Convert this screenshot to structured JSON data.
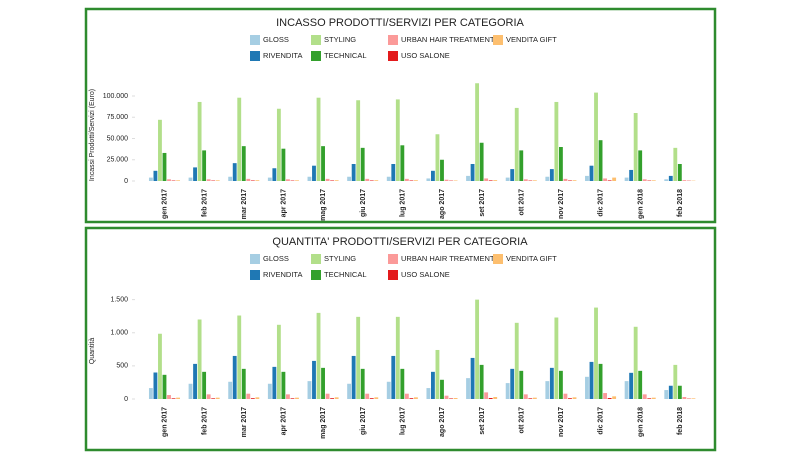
{
  "chart_data": [
    {
      "type": "bar",
      "title": "INCASSO PRODOTTI/SERVIZI PER CATEGORIA",
      "y_label": "Incassi Prodotti/Servizi (Euro)",
      "categories": [
        "gen 2017",
        "feb 2017",
        "mar 2017",
        "apr 2017",
        "mag 2017",
        "giu 2017",
        "lug 2017",
        "ago 2017",
        "set 2017",
        "ott 2017",
        "nov 2017",
        "dic 2017",
        "gen 2018",
        "feb 2018"
      ],
      "series": [
        {
          "name": "GLOSS",
          "color": "#a6cee3",
          "values": [
            4000,
            4000,
            5000,
            4000,
            5000,
            5000,
            5000,
            3000,
            6000,
            4000,
            5000,
            6000,
            4000,
            2000
          ]
        },
        {
          "name": "RIVENDITA",
          "color": "#1f78b4",
          "values": [
            12000,
            16000,
            21000,
            15000,
            18000,
            20000,
            20000,
            12000,
            20000,
            14000,
            14000,
            18000,
            13000,
            6000
          ]
        },
        {
          "name": "STYLING",
          "color": "#b2df8a",
          "values": [
            72000,
            93000,
            98000,
            85000,
            98000,
            95000,
            96000,
            55000,
            115000,
            86000,
            93000,
            104000,
            80000,
            39000
          ]
        },
        {
          "name": "TECHNICAL",
          "color": "#33a02c",
          "values": [
            33000,
            36000,
            41000,
            38000,
            41000,
            39000,
            42000,
            25000,
            45000,
            36000,
            40000,
            48000,
            36000,
            20000
          ]
        },
        {
          "name": "URBAN HAIR TREATMENTS",
          "color": "#fb9a99",
          "values": [
            2000,
            2000,
            2500,
            2000,
            2500,
            2500,
            2500,
            1500,
            3000,
            2000,
            2500,
            3000,
            2000,
            1000
          ]
        },
        {
          "name": "USO SALONE",
          "color": "#e31a1c",
          "values": [
            500,
            500,
            600,
            500,
            600,
            600,
            600,
            400,
            700,
            500,
            600,
            700,
            500,
            300
          ]
        },
        {
          "name": "VENDITA GIFT",
          "color": "#fdbf6f",
          "values": [
            800,
            800,
            900,
            800,
            900,
            900,
            900,
            600,
            1000,
            800,
            900,
            4000,
            800,
            400
          ]
        }
      ],
      "ylim": [
        0,
        120000
      ],
      "yticks": [
        0,
        {
          "value": 25000,
          "label": "25.000"
        },
        {
          "value": 50000,
          "label": "50.000"
        },
        {
          "value": 75000,
          "label": "75.000"
        },
        {
          "value": 100000,
          "label": "100.000"
        }
      ]
    },
    {
      "type": "bar",
      "title": "QUANTITA' PRODOTTI/SERVIZI PER CATEGORIA",
      "y_label": "Quantità",
      "categories": [
        "gen 2017",
        "feb 2017",
        "mar 2017",
        "apr 2017",
        "mag 2017",
        "giu 2017",
        "lug 2017",
        "ago 2017",
        "set 2017",
        "ott 2017",
        "nov 2017",
        "dic 2017",
        "gen 2018",
        "feb 2018"
      ],
      "series": [
        {
          "name": "GLOSS",
          "color": "#a6cee3",
          "values": [
            165,
            230,
            260,
            230,
            270,
            230,
            260,
            165,
            315,
            240,
            270,
            335,
            270,
            135
          ]
        },
        {
          "name": "RIVENDITA",
          "color": "#1f78b4",
          "values": [
            400,
            530,
            650,
            485,
            575,
            650,
            650,
            410,
            620,
            455,
            470,
            560,
            395,
            200
          ]
        },
        {
          "name": "STYLING",
          "color": "#b2df8a",
          "values": [
            985,
            1200,
            1260,
            1120,
            1300,
            1240,
            1240,
            740,
            1500,
            1150,
            1230,
            1380,
            1090,
            515
          ]
        },
        {
          "name": "TECHNICAL",
          "color": "#33a02c",
          "values": [
            365,
            410,
            455,
            410,
            470,
            455,
            455,
            290,
            515,
            425,
            425,
            530,
            425,
            200
          ]
        },
        {
          "name": "URBAN HAIR TREATMENTS",
          "color": "#fb9a99",
          "values": [
            60,
            70,
            80,
            70,
            80,
            80,
            80,
            50,
            100,
            70,
            80,
            90,
            70,
            30
          ]
        },
        {
          "name": "USO SALONE",
          "color": "#e31a1c",
          "values": [
            10,
            10,
            12,
            10,
            12,
            12,
            12,
            8,
            15,
            10,
            12,
            15,
            10,
            5
          ]
        },
        {
          "name": "VENDITA GIFT",
          "color": "#fdbf6f",
          "values": [
            20,
            20,
            25,
            20,
            25,
            25,
            25,
            15,
            30,
            20,
            25,
            40,
            20,
            10
          ]
        }
      ],
      "ylim": [
        0,
        1600
      ],
      "yticks": [
        0,
        500,
        {
          "value": 1000,
          "label": "1.000"
        },
        {
          "value": 1500,
          "label": "1.500"
        }
      ]
    }
  ]
}
